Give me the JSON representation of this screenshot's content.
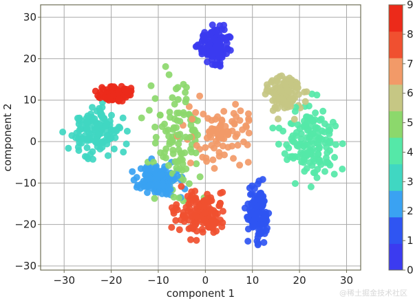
{
  "chart_data": {
    "type": "scatter",
    "title": "",
    "xlabel": "component 1",
    "ylabel": "component 2",
    "xlim": [
      -35,
      33
    ],
    "ylim": [
      -31,
      33
    ],
    "xticks": [
      -30,
      -20,
      -10,
      0,
      10,
      20,
      30
    ],
    "yticks": [
      -30,
      -20,
      -10,
      0,
      10,
      20,
      30
    ],
    "grid": true,
    "colorbar": {
      "ticks": [
        0,
        1,
        2,
        3,
        4,
        5,
        6,
        7,
        8,
        9
      ],
      "range": [
        0,
        9
      ],
      "colormap": "rainbow",
      "discrete_levels": 10,
      "colors": [
        "#3b3bf0",
        "#2f55f2",
        "#3aa2f2",
        "#40d7c2",
        "#55e8a8",
        "#8cd86c",
        "#c6c784",
        "#f29a68",
        "#f05030",
        "#ec2a1a"
      ]
    },
    "clusters": [
      {
        "label": 0,
        "x": [
          -2,
          6
        ],
        "y": [
          17,
          29
        ],
        "n": 150
      },
      {
        "label": 1,
        "x": [
          8,
          14
        ],
        "y": [
          -27,
          -8
        ],
        "n": 120
      },
      {
        "label": 2,
        "x": [
          -16,
          -4
        ],
        "y": [
          -14,
          -4
        ],
        "n": 130
      },
      {
        "label": 3,
        "x": [
          -30,
          -16
        ],
        "y": [
          -6,
          12
        ],
        "n": 130
      },
      {
        "label": 4,
        "x": [
          14,
          30
        ],
        "y": [
          -12,
          12
        ],
        "n": 150
      },
      {
        "label": 5,
        "x": [
          -14,
          2
        ],
        "y": [
          -18,
          20
        ],
        "n": 110
      },
      {
        "label": 6,
        "x": [
          12,
          22
        ],
        "y": [
          5,
          18
        ],
        "n": 120
      },
      {
        "label": 7,
        "x": [
          -6,
          12
        ],
        "y": [
          -8,
          12
        ],
        "n": 90
      },
      {
        "label": 8,
        "x": [
          -8,
          6
        ],
        "y": [
          -24,
          -10
        ],
        "n": 150
      },
      {
        "label": 9,
        "x": [
          -24,
          -14
        ],
        "y": [
          9,
          14
        ],
        "n": 90
      }
    ]
  },
  "watermark": "@稀土掘金技术社区"
}
